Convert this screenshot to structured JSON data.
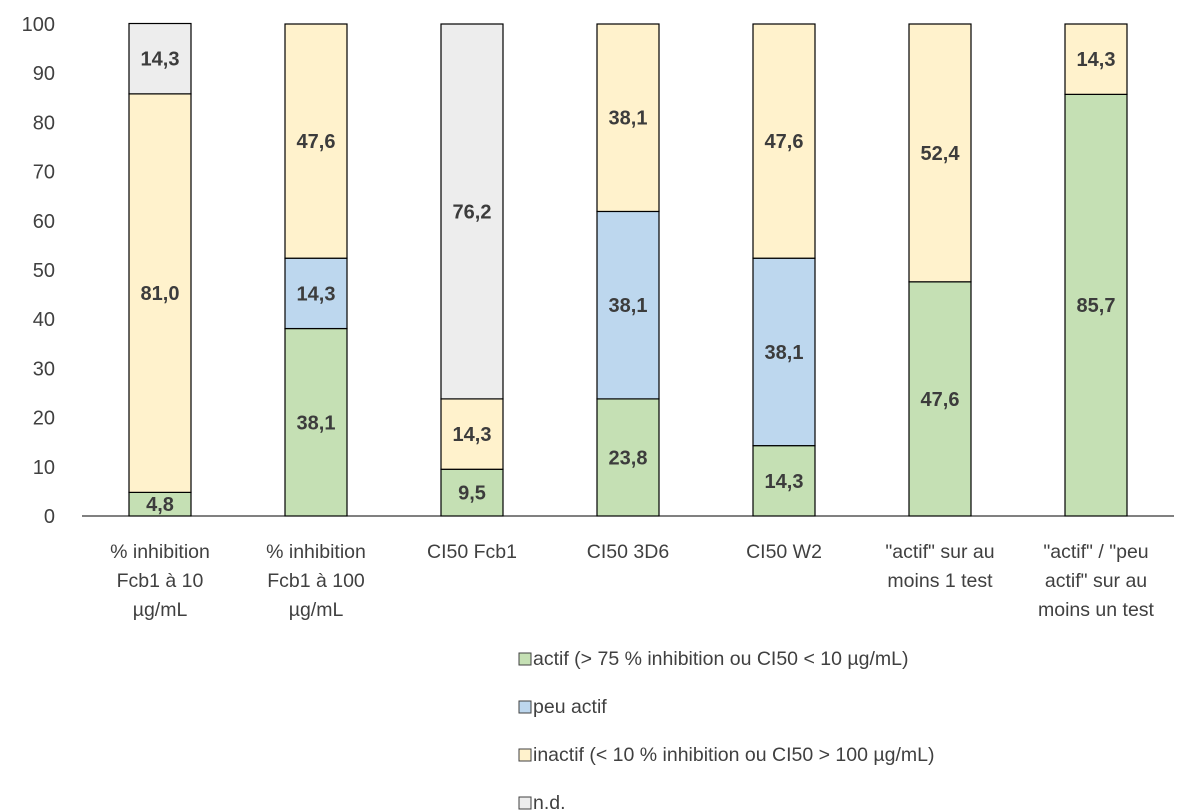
{
  "chart_data": {
    "type": "bar",
    "stacked": true,
    "title": "",
    "xlabel": "",
    "ylabel": "",
    "ylim": [
      0,
      100
    ],
    "yticks": [
      0,
      10,
      20,
      30,
      40,
      50,
      60,
      70,
      80,
      90,
      100
    ],
    "grid": false,
    "legend_position": "bottom-right",
    "categories": [
      [
        "% inhibition",
        "Fcb1 à 10",
        "µg/mL"
      ],
      [
        "% inhibition",
        "Fcb1 à 100",
        "µg/mL"
      ],
      [
        "CI50 Fcb1"
      ],
      [
        "CI50 3D6"
      ],
      [
        "CI50 W2"
      ],
      [
        "\"actif\" sur au",
        "moins 1 test"
      ],
      [
        "\"actif\" / \"peu",
        "actif\" sur au",
        "moins un test"
      ]
    ],
    "series": [
      {
        "name": "actif (> 75 % inhibition ou CI50 < 10 µg/mL)",
        "color": "#c5e0b4",
        "values": [
          4.8,
          38.1,
          9.5,
          23.8,
          14.3,
          47.6,
          85.7
        ],
        "labels": [
          "4,8",
          "38,1",
          "9,5",
          "23,8",
          "14,3",
          "47,6",
          "85,7"
        ]
      },
      {
        "name": "peu actif",
        "color": "#bdd7ee",
        "values": [
          0,
          14.3,
          0,
          38.1,
          38.1,
          0,
          0
        ],
        "labels": [
          "",
          "14,3",
          "",
          "38,1",
          "38,1",
          "",
          ""
        ]
      },
      {
        "name": "inactif (< 10 % inhibition ou CI50 > 100 µg/mL)",
        "color": "#fff2cc",
        "values": [
          81.0,
          47.6,
          14.3,
          38.1,
          47.6,
          52.4,
          14.3
        ],
        "labels": [
          "81,0",
          "47,6",
          "14,3",
          "38,1",
          "47,6",
          "52,4",
          "14,3"
        ]
      },
      {
        "name": "n.d.",
        "color": "#ededed",
        "values": [
          14.3,
          0,
          76.2,
          0,
          0,
          0,
          0
        ],
        "labels": [
          "14,3",
          "",
          "76,2",
          "",
          "",
          "",
          ""
        ]
      }
    ]
  }
}
